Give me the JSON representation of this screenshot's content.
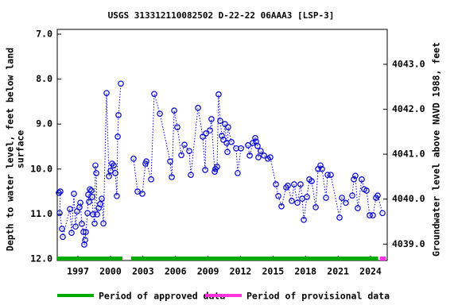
{
  "chart_data": {
    "type": "line",
    "title": "USGS 313312110082502 D-22-22 06AAA3 [LSP-3]",
    "y_label_lines": [
      "Depth to water level, feet below land",
      "surface"
    ],
    "y2_label": "Groundwater level above NAVD 1988, feet",
    "xlim": [
      1995.09,
      2025.54
    ],
    "xticks": [
      1997,
      2000,
      2003,
      2006,
      2009,
      2012,
      2015,
      2018,
      2021,
      2024
    ],
    "ylim": [
      7,
      12
    ],
    "y_inverted": true,
    "yticks": [
      {
        "value": 7,
        "label": "7.0"
      },
      {
        "value": 8,
        "label": "8.0"
      },
      {
        "value": 9,
        "label": "9.0"
      },
      {
        "value": 10,
        "label": "10.0"
      },
      {
        "value": 11,
        "label": "11.0"
      },
      {
        "value": 12,
        "label": "12.0"
      }
    ],
    "y2lim": [
      4043.67,
      4038.67
    ],
    "y2ticks": [
      {
        "value": 4043,
        "label": "4043.0"
      },
      {
        "value": 4042,
        "label": "4042.0"
      },
      {
        "value": 4041,
        "label": "4041.0"
      },
      {
        "value": 4040,
        "label": "4040.0"
      },
      {
        "value": 4039,
        "label": "4039.0"
      }
    ],
    "series": [
      {
        "name": "Depth to water level",
        "color": "#0000cc",
        "x": [
          1995.24,
          1995.38,
          1995.31,
          1995.53,
          1995.6,
          1996.26,
          1996.41,
          1996.63,
          1996.78,
          1996.92,
          1997.14,
          1997.22,
          1997.36,
          1997.51,
          1997.58,
          1997.66,
          1997.73,
          1997.88,
          1997.95,
          1998.02,
          1998.1,
          1998.24,
          1998.32,
          1998.39,
          1998.54,
          1998.61,
          1998.69,
          1998.76,
          1998.91,
          1999.05,
          1999.2,
          1999.35,
          1999.64,
          1999.86,
          2000.01,
          2000.15,
          2000.3,
          2000.45,
          2000.59,
          2000.67,
          2000.74,
          2000.96,
          2001.5,
          2002.13,
          2002.5,
          2002.94,
          2003.23,
          2003.31,
          2003.75,
          2004.04,
          2004.56,
          2005.51,
          2005.66,
          2005.88,
          2006.17,
          2006.54,
          2006.83,
          2007.27,
          2007.42,
          2008.08,
          2008.52,
          2008.74,
          2008.81,
          2009.18,
          2009.32,
          2009.62,
          2009.69,
          2009.84,
          2009.98,
          2010.13,
          2010.28,
          2010.42,
          2010.57,
          2010.72,
          2010.79,
          2010.86,
          2011.16,
          2011.6,
          2011.74,
          2012.04,
          2012.7,
          2012.85,
          2013.14,
          2013.36,
          2013.43,
          2013.58,
          2013.65,
          2013.87,
          2014.17,
          2014.53,
          2014.75,
          2015.27,
          2015.49,
          2015.78,
          2016.22,
          2016.37,
          2016.73,
          2016.95,
          2017.25,
          2017.54,
          2017.69,
          2017.84,
          2018.13,
          2018.35,
          2018.57,
          2018.94,
          2019.16,
          2019.38,
          2019.52,
          2019.89,
          2020.04,
          2020.33,
          2021.14,
          2021.36,
          2021.72,
          2022.31,
          2022.46,
          2022.6,
          2022.82,
          2023.19,
          2023.41,
          2023.63,
          2023.92,
          2024.22,
          2024.51,
          2024.66,
          2025.1
        ],
        "values": [
          10.53,
          10.5,
          10.98,
          11.33,
          11.51,
          10.89,
          11.42,
          10.55,
          11.28,
          10.94,
          10.85,
          10.75,
          11.22,
          11.4,
          11.68,
          11.58,
          11.4,
          10.98,
          10.57,
          10.73,
          10.45,
          10.48,
          10.62,
          11.01,
          11.21,
          9.92,
          10.09,
          11.01,
          10.87,
          10.78,
          10.66,
          11.21,
          8.31,
          10.16,
          10.04,
          9.88,
          9.92,
          10.09,
          10.6,
          9.28,
          8.8,
          8.1,
          null,
          9.77,
          10.5,
          10.55,
          9.88,
          9.83,
          10.23,
          8.33,
          8.77,
          9.83,
          10.18,
          8.7,
          9.07,
          9.69,
          9.46,
          9.6,
          10.13,
          8.64,
          9.28,
          10.02,
          9.21,
          9.14,
          8.89,
          10.06,
          10.0,
          9.95,
          8.34,
          8.93,
          9.26,
          9.35,
          9.0,
          9.42,
          9.62,
          9.07,
          9.4,
          9.54,
          10.09,
          9.54,
          9.47,
          9.7,
          9.42,
          9.31,
          9.39,
          9.49,
          9.74,
          9.6,
          9.7,
          9.77,
          9.74,
          10.34,
          10.6,
          10.83,
          10.41,
          10.37,
          10.71,
          10.34,
          10.75,
          10.34,
          10.66,
          11.13,
          10.62,
          10.23,
          10.27,
          10.85,
          10.0,
          9.92,
          10.0,
          10.64,
          10.13,
          10.13,
          11.08,
          10.64,
          10.75,
          10.59,
          10.23,
          10.15,
          10.87,
          10.23,
          10.45,
          10.48,
          11.03,
          11.03,
          10.64,
          10.59,
          10.98
        ]
      }
    ],
    "periods": [
      {
        "name": "Period of approved data",
        "color": "#00aa00",
        "start": 1995.09,
        "end": 2001.1
      },
      {
        "name": "Period of approved data",
        "color": "#00aa00",
        "start": 2001.9,
        "end": 2024.7
      },
      {
        "name": "Period of provisional data",
        "color": "#ff33dd",
        "start": 2024.85,
        "end": 2025.4
      }
    ],
    "legend": [
      {
        "name": "Period of approved data",
        "color": "#00aa00"
      },
      {
        "name": "Period of provisional data",
        "color": "#ff33dd"
      }
    ]
  }
}
